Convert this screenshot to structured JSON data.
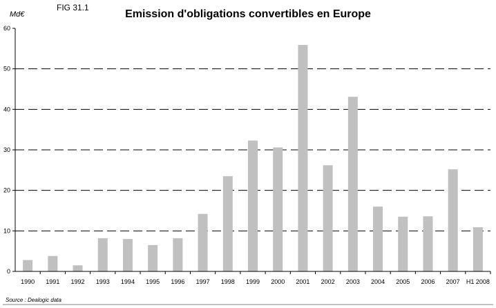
{
  "header": {
    "fig_label": "FIG 31.1",
    "unit_label": "Md€",
    "title": "Emission d'obligations convertibles en Europe"
  },
  "footer": {
    "source": "Source : Dealogic data"
  },
  "colors": {
    "bar": "#c0c0c0",
    "axis": "#000000",
    "grid": "#000000"
  },
  "chart_data": {
    "type": "bar",
    "title": "Emission d'obligations convertibles en Europe",
    "xlabel": "",
    "ylabel": "Md€",
    "ylim": [
      0,
      60
    ],
    "yticks": [
      0,
      10,
      20,
      30,
      40,
      50,
      60
    ],
    "grid": "horizontal dashed",
    "categories": [
      "1990",
      "1991",
      "1992",
      "1993",
      "1994",
      "1995",
      "1996",
      "1997",
      "1998",
      "1999",
      "2000",
      "2001",
      "2002",
      "2003",
      "2004",
      "2005",
      "2006",
      "2007",
      "H1 2008"
    ],
    "values": [
      2.8,
      3.8,
      1.5,
      8.2,
      8.0,
      6.5,
      8.2,
      14.2,
      23.5,
      32.3,
      30.6,
      55.9,
      26.2,
      43.1,
      16.0,
      13.5,
      13.6,
      25.2,
      10.9
    ]
  }
}
